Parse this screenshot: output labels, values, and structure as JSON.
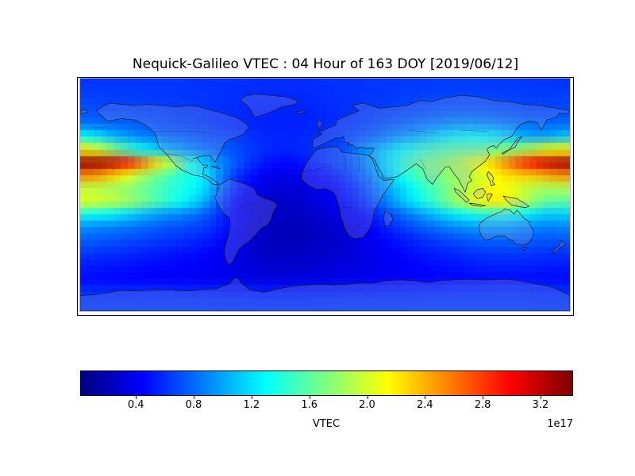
{
  "title": "Nequick-Galileo VTEC : 04 Hour of 163 DOY [2019/06/12]",
  "colorbar": {
    "label": "VTEC",
    "offset_label": "1e17",
    "tick_labels": [
      "0.4",
      "0.8",
      "1.2",
      "1.6",
      "2.0",
      "2.4",
      "2.8",
      "3.2"
    ],
    "tick_values": [
      0.4,
      0.8,
      1.2,
      1.6,
      2.0,
      2.4,
      2.8,
      3.2
    ],
    "vmin": 0.02,
    "vmax": 3.42,
    "colormap": "jet",
    "orientation": "horizontal"
  },
  "colors": {
    "background": "#ffffff",
    "frame": "#000000",
    "coastline": "#1c1c1c",
    "land_tint": "rgba(160,160,215,0.25)",
    "colorbar_low": "#000080",
    "colorbar_high": "#800000"
  },
  "chart_data": {
    "type": "heatmap",
    "title": "Nequick-Galileo VTEC : 04 Hour of 163 DOY [2019/06/12]",
    "colorbar_label": "VTEC",
    "value_scale": "1e17",
    "colormap": "jet",
    "extent": {
      "lon": [
        -180,
        180
      ],
      "lat": [
        -90,
        90
      ]
    },
    "lon_centers_deg": [
      -175,
      -165,
      -155,
      -145,
      -135,
      -125,
      -115,
      -105,
      -95,
      -85,
      -75,
      -65,
      -55,
      -45,
      -35,
      -25,
      -15,
      -5,
      5,
      15,
      25,
      35,
      45,
      55,
      65,
      75,
      85,
      95,
      105,
      115,
      125,
      135,
      145,
      155,
      165,
      175
    ],
    "lat_centers_deg": [
      85,
      75,
      65,
      55,
      45,
      35,
      25,
      15,
      5,
      -5,
      -15,
      -25,
      -35,
      -45,
      -55,
      -65,
      -75,
      -85
    ],
    "grid_units": "1e17 VTEC",
    "grid": [
      [
        0.62,
        0.62,
        0.62,
        0.62,
        0.62,
        0.62,
        0.62,
        0.62,
        0.61,
        0.61,
        0.6,
        0.6,
        0.6,
        0.59,
        0.59,
        0.59,
        0.59,
        0.6,
        0.6,
        0.61,
        0.61,
        0.62,
        0.62,
        0.63,
        0.63,
        0.64,
        0.64,
        0.64,
        0.64,
        0.64,
        0.63,
        0.63,
        0.63,
        0.62,
        0.62,
        0.62
      ],
      [
        0.66,
        0.66,
        0.65,
        0.65,
        0.65,
        0.64,
        0.64,
        0.63,
        0.62,
        0.62,
        0.61,
        0.6,
        0.59,
        0.58,
        0.58,
        0.58,
        0.58,
        0.59,
        0.6,
        0.61,
        0.62,
        0.63,
        0.64,
        0.65,
        0.66,
        0.67,
        0.68,
        0.68,
        0.68,
        0.68,
        0.67,
        0.66,
        0.66,
        0.65,
        0.65,
        0.66
      ],
      [
        0.72,
        0.71,
        0.7,
        0.69,
        0.68,
        0.67,
        0.66,
        0.64,
        0.63,
        0.61,
        0.6,
        0.58,
        0.57,
        0.56,
        0.55,
        0.55,
        0.56,
        0.57,
        0.58,
        0.6,
        0.62,
        0.64,
        0.66,
        0.68,
        0.7,
        0.72,
        0.74,
        0.75,
        0.76,
        0.75,
        0.74,
        0.72,
        0.7,
        0.69,
        0.69,
        0.7
      ],
      [
        0.82,
        0.8,
        0.78,
        0.76,
        0.74,
        0.72,
        0.7,
        0.68,
        0.66,
        0.63,
        0.61,
        0.59,
        0.57,
        0.55,
        0.54,
        0.54,
        0.55,
        0.57,
        0.59,
        0.62,
        0.65,
        0.69,
        0.73,
        0.77,
        0.81,
        0.85,
        0.89,
        0.92,
        0.94,
        0.93,
        0.9,
        0.86,
        0.82,
        0.8,
        0.79,
        0.8
      ],
      [
        1.3,
        1.18,
        1.06,
        0.96,
        0.89,
        0.84,
        0.8,
        0.77,
        0.74,
        0.71,
        0.68,
        0.65,
        0.61,
        0.58,
        0.56,
        0.56,
        0.58,
        0.6,
        0.63,
        0.67,
        0.72,
        0.78,
        0.85,
        0.93,
        1.02,
        1.11,
        1.2,
        1.27,
        1.31,
        1.3,
        1.24,
        1.14,
        1.04,
        0.98,
        1.0,
        1.1
      ],
      [
        2.2,
        2.0,
        1.75,
        1.52,
        1.33,
        1.18,
        1.06,
        0.97,
        0.89,
        0.82,
        0.76,
        0.7,
        0.64,
        0.59,
        0.56,
        0.56,
        0.58,
        0.62,
        0.66,
        0.72,
        0.88,
        1.0,
        1.15,
        1.28,
        1.4,
        1.5,
        1.56,
        1.6,
        1.63,
        1.66,
        1.7,
        1.76,
        1.85,
        1.97,
        2.1,
        2.18
      ],
      [
        3.36,
        3.3,
        3.18,
        2.95,
        2.65,
        2.32,
        2.0,
        1.62,
        1.3,
        1.05,
        0.88,
        0.74,
        0.62,
        0.52,
        0.47,
        0.47,
        0.52,
        0.58,
        0.65,
        0.72,
        0.82,
        1.0,
        1.2,
        1.4,
        1.55,
        1.7,
        1.76,
        1.85,
        1.98,
        2.15,
        2.35,
        2.6,
        2.85,
        3.05,
        3.2,
        3.3
      ],
      [
        2.55,
        2.45,
        2.3,
        2.1,
        1.88,
        1.7,
        1.55,
        1.42,
        1.32,
        1.15,
        0.85,
        0.62,
        0.5,
        0.42,
        0.38,
        0.38,
        0.42,
        0.47,
        0.53,
        0.62,
        0.75,
        0.92,
        1.12,
        1.32,
        1.5,
        1.63,
        1.72,
        1.8,
        1.9,
        2.02,
        2.15,
        2.25,
        2.3,
        2.35,
        2.45,
        2.52
      ],
      [
        1.92,
        1.88,
        1.84,
        1.76,
        1.66,
        1.56,
        1.46,
        1.38,
        1.28,
        1.1,
        0.78,
        0.55,
        0.43,
        0.35,
        0.31,
        0.31,
        0.34,
        0.38,
        0.44,
        0.53,
        0.65,
        0.8,
        0.98,
        1.15,
        1.32,
        1.48,
        1.62,
        1.78,
        1.92,
        2.05,
        2.15,
        2.1,
        1.98,
        1.88,
        1.85,
        1.88
      ],
      [
        2.05,
        2.0,
        1.94,
        1.84,
        1.72,
        1.58,
        1.44,
        1.32,
        1.15,
        0.95,
        0.65,
        0.47,
        0.37,
        0.3,
        0.27,
        0.27,
        0.3,
        0.33,
        0.38,
        0.46,
        0.57,
        0.71,
        0.88,
        1.05,
        1.22,
        1.4,
        1.58,
        1.78,
        1.98,
        2.15,
        2.22,
        2.15,
        1.95,
        1.75,
        1.62,
        1.6
      ],
      [
        1.35,
        1.3,
        1.25,
        1.17,
        1.08,
        1.0,
        0.94,
        0.88,
        0.82,
        0.72,
        0.57,
        0.44,
        0.34,
        0.28,
        0.24,
        0.24,
        0.26,
        0.29,
        0.32,
        0.38,
        0.46,
        0.55,
        0.67,
        0.78,
        0.9,
        1.02,
        1.13,
        1.24,
        1.33,
        1.4,
        1.42,
        1.38,
        1.28,
        1.18,
        1.12,
        1.15
      ],
      [
        0.92,
        0.89,
        0.87,
        0.84,
        0.8,
        0.76,
        0.73,
        0.7,
        0.67,
        0.62,
        0.53,
        0.41,
        0.32,
        0.25,
        0.22,
        0.21,
        0.23,
        0.25,
        0.28,
        0.33,
        0.39,
        0.46,
        0.55,
        0.63,
        0.71,
        0.78,
        0.84,
        0.9,
        0.95,
        0.98,
        0.99,
        0.97,
        0.93,
        0.89,
        0.87,
        0.89
      ],
      [
        0.76,
        0.74,
        0.72,
        0.7,
        0.67,
        0.65,
        0.62,
        0.6,
        0.57,
        0.53,
        0.46,
        0.38,
        0.3,
        0.25,
        0.22,
        0.21,
        0.22,
        0.24,
        0.27,
        0.3,
        0.35,
        0.4,
        0.46,
        0.52,
        0.57,
        0.62,
        0.66,
        0.7,
        0.74,
        0.77,
        0.78,
        0.78,
        0.76,
        0.74,
        0.73,
        0.74
      ],
      [
        0.63,
        0.61,
        0.6,
        0.58,
        0.56,
        0.54,
        0.52,
        0.5,
        0.48,
        0.45,
        0.41,
        0.35,
        0.3,
        0.26,
        0.24,
        0.24,
        0.25,
        0.27,
        0.29,
        0.31,
        0.34,
        0.38,
        0.42,
        0.45,
        0.49,
        0.52,
        0.55,
        0.57,
        0.6,
        0.62,
        0.63,
        0.64,
        0.63,
        0.62,
        0.61,
        0.61
      ],
      [
        0.53,
        0.52,
        0.51,
        0.5,
        0.48,
        0.47,
        0.46,
        0.45,
        0.44,
        0.42,
        0.39,
        0.35,
        0.32,
        0.3,
        0.28,
        0.28,
        0.29,
        0.3,
        0.32,
        0.33,
        0.36,
        0.38,
        0.41,
        0.43,
        0.45,
        0.47,
        0.49,
        0.51,
        0.52,
        0.54,
        0.55,
        0.55,
        0.55,
        0.54,
        0.53,
        0.53
      ],
      [
        0.47,
        0.46,
        0.46,
        0.45,
        0.44,
        0.44,
        0.43,
        0.42,
        0.42,
        0.41,
        0.39,
        0.37,
        0.35,
        0.34,
        0.33,
        0.33,
        0.34,
        0.35,
        0.36,
        0.37,
        0.38,
        0.4,
        0.41,
        0.42,
        0.44,
        0.45,
        0.46,
        0.46,
        0.47,
        0.48,
        0.49,
        0.49,
        0.49,
        0.48,
        0.48,
        0.47
      ],
      [
        0.6,
        0.6,
        0.59,
        0.59,
        0.58,
        0.58,
        0.58,
        0.57,
        0.57,
        0.56,
        0.56,
        0.55,
        0.55,
        0.54,
        0.54,
        0.54,
        0.54,
        0.55,
        0.55,
        0.56,
        0.56,
        0.57,
        0.57,
        0.58,
        0.58,
        0.59,
        0.59,
        0.6,
        0.6,
        0.6,
        0.61,
        0.61,
        0.61,
        0.6,
        0.6,
        0.6
      ],
      [
        0.64,
        0.64,
        0.64,
        0.64,
        0.64,
        0.64,
        0.64,
        0.64,
        0.64,
        0.64,
        0.63,
        0.63,
        0.63,
        0.63,
        0.63,
        0.63,
        0.63,
        0.63,
        0.64,
        0.64,
        0.64,
        0.64,
        0.64,
        0.64,
        0.65,
        0.65,
        0.65,
        0.65,
        0.65,
        0.65,
        0.65,
        0.65,
        0.65,
        0.64,
        0.64,
        0.64
      ]
    ]
  }
}
